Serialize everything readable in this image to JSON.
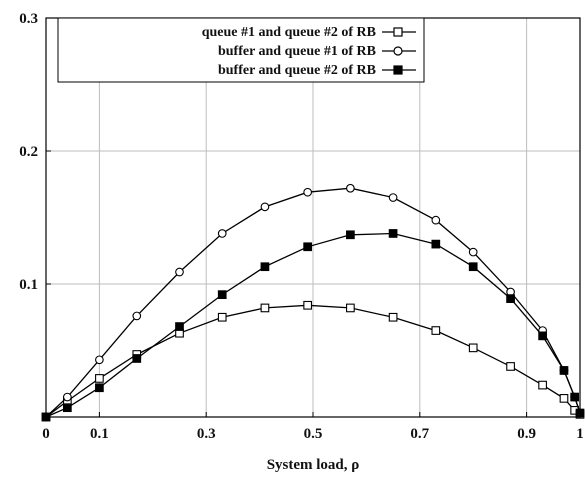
{
  "chart_data": {
    "type": "line",
    "xlabel": "System load, ρ",
    "ylabel": "",
    "xlim": [
      0,
      1
    ],
    "ylim": [
      0,
      0.3
    ],
    "x_ticks": [
      0,
      0.1,
      0.3,
      0.5,
      0.7,
      0.9,
      1
    ],
    "y_ticks": [
      0.1,
      0.2,
      0.3
    ],
    "grid": true,
    "legend_position": "top-left",
    "series": [
      {
        "name": "queue #1 and queue #2 of RB",
        "marker": "open-square",
        "color": "#000000",
        "points": [
          [
            0,
            0
          ],
          [
            0.04,
            0.012
          ],
          [
            0.1,
            0.029
          ],
          [
            0.17,
            0.047
          ],
          [
            0.25,
            0.063
          ],
          [
            0.33,
            0.075
          ],
          [
            0.41,
            0.082
          ],
          [
            0.49,
            0.084
          ],
          [
            0.57,
            0.082
          ],
          [
            0.65,
            0.075
          ],
          [
            0.73,
            0.065
          ],
          [
            0.8,
            0.052
          ],
          [
            0.87,
            0.038
          ],
          [
            0.93,
            0.024
          ],
          [
            0.97,
            0.014
          ],
          [
            0.99,
            0.005
          ],
          [
            1,
            0.002
          ]
        ]
      },
      {
        "name": "buffer and queue #1 of RB",
        "marker": "open-circle",
        "color": "#000000",
        "points": [
          [
            0,
            0
          ],
          [
            0.04,
            0.015
          ],
          [
            0.1,
            0.043
          ],
          [
            0.17,
            0.076
          ],
          [
            0.25,
            0.109
          ],
          [
            0.33,
            0.138
          ],
          [
            0.41,
            0.158
          ],
          [
            0.49,
            0.169
          ],
          [
            0.57,
            0.172
          ],
          [
            0.65,
            0.165
          ],
          [
            0.73,
            0.148
          ],
          [
            0.8,
            0.124
          ],
          [
            0.87,
            0.094
          ],
          [
            0.93,
            0.065
          ],
          [
            0.97,
            0.035
          ],
          [
            0.99,
            0.015
          ],
          [
            1,
            0.003
          ]
        ]
      },
      {
        "name": "buffer and queue #2 of RB",
        "marker": "filled-square",
        "color": "#000000",
        "points": [
          [
            0,
            0
          ],
          [
            0.04,
            0.007
          ],
          [
            0.1,
            0.022
          ],
          [
            0.17,
            0.044
          ],
          [
            0.25,
            0.068
          ],
          [
            0.33,
            0.092
          ],
          [
            0.41,
            0.113
          ],
          [
            0.49,
            0.128
          ],
          [
            0.57,
            0.137
          ],
          [
            0.65,
            0.138
          ],
          [
            0.73,
            0.13
          ],
          [
            0.8,
            0.113
          ],
          [
            0.87,
            0.089
          ],
          [
            0.93,
            0.061
          ],
          [
            0.97,
            0.035
          ],
          [
            0.99,
            0.015
          ],
          [
            1,
            0.003
          ]
        ]
      }
    ]
  }
}
